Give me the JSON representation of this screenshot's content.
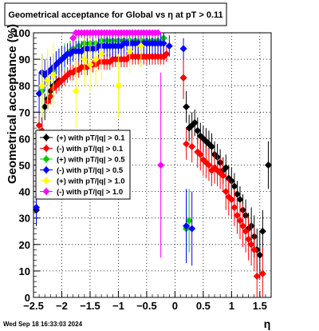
{
  "title_box": {
    "text": "Geometrical acceptance for Global vs    η  at pT > 0.11"
  },
  "timestamp": "Wed Sep 18 16:33:03 2024",
  "chart_data": {
    "type": "scatter",
    "title": "Geometrical acceptance for Global vs    η  at pT > 0.11",
    "xlabel": "η",
    "ylabel": "Geometrical acceptance (%)",
    "xlim": [
      -2.5,
      1.7
    ],
    "ylim": [
      0,
      100
    ],
    "grid": true,
    "legend_position": "center-left",
    "x_ticks": [
      -2.5,
      -2,
      -1.5,
      -1,
      -0.5,
      0,
      0.5,
      1,
      1.5
    ],
    "x_tick_labels": [
      "−2.5",
      "−2",
      "−1.5",
      "−1",
      "−0.5",
      "0",
      "0.5",
      "1",
      "1.5"
    ],
    "y_ticks": [
      0,
      10,
      20,
      30,
      40,
      50,
      60,
      70,
      80,
      90,
      100
    ],
    "y_tick_labels": [
      "0",
      "10",
      "20",
      "30",
      "40",
      "50",
      "60",
      "70",
      "80",
      "90",
      "100"
    ],
    "series": [
      {
        "name": "(+) with pT/|q| > 0.1",
        "color": "#000000",
        "points": [
          [
            -2.45,
            33
          ],
          [
            -2.35,
            62
          ],
          [
            -2.3,
            72
          ],
          [
            -2.25,
            75
          ],
          [
            -2.2,
            78
          ],
          [
            -2.15,
            80
          ],
          [
            -2.1,
            81
          ],
          [
            -2.05,
            82
          ],
          [
            0.15,
            83
          ],
          [
            0.2,
            72
          ],
          [
            0.25,
            64
          ],
          [
            0.3,
            65
          ],
          [
            0.35,
            66
          ],
          [
            0.4,
            63
          ],
          [
            0.45,
            61
          ],
          [
            0.5,
            60
          ],
          [
            0.55,
            59
          ],
          [
            0.6,
            58
          ],
          [
            0.65,
            57
          ],
          [
            0.7,
            54
          ],
          [
            0.75,
            53
          ],
          [
            0.8,
            51
          ],
          [
            0.85,
            48
          ],
          [
            0.9,
            49
          ],
          [
            0.95,
            45
          ],
          [
            1.0,
            44
          ],
          [
            1.05,
            42
          ],
          [
            1.1,
            39
          ],
          [
            1.15,
            37
          ],
          [
            1.2,
            33
          ],
          [
            1.25,
            31
          ],
          [
            1.3,
            26
          ],
          [
            1.35,
            27
          ],
          [
            1.4,
            23
          ],
          [
            1.45,
            18
          ],
          [
            1.5,
            16
          ],
          [
            1.55,
            25
          ],
          [
            1.65,
            50
          ]
        ],
        "err": [
          6,
          8,
          5,
          4,
          3,
          3,
          3,
          3,
          8,
          6,
          5,
          5,
          5,
          5,
          5,
          5,
          5,
          5,
          5,
          5,
          5,
          5,
          5,
          5,
          5,
          5,
          5,
          5,
          5,
          6,
          6,
          6,
          7,
          8,
          8,
          9,
          8,
          9
        ]
      },
      {
        "name": "(-) with pT/|q| > 0.1",
        "color": "#ff0000",
        "points": [
          [
            -2.4,
            65
          ],
          [
            -2.35,
            63
          ],
          [
            -2.25,
            74
          ],
          [
            -2.2,
            76
          ],
          [
            -2.15,
            79
          ],
          [
            -2.1,
            80
          ],
          [
            -2.05,
            81
          ],
          [
            -2.0,
            82
          ],
          [
            -1.95,
            83
          ],
          [
            -1.9,
            84
          ],
          [
            -1.85,
            85
          ],
          [
            -1.8,
            85
          ],
          [
            -1.75,
            86
          ],
          [
            -1.7,
            86
          ],
          [
            -1.65,
            87
          ],
          [
            -1.6,
            87
          ],
          [
            -1.55,
            87
          ],
          [
            -1.5,
            88
          ],
          [
            -1.45,
            88
          ],
          [
            -1.4,
            88
          ],
          [
            -1.35,
            89
          ],
          [
            -1.3,
            89
          ],
          [
            -1.25,
            89
          ],
          [
            -1.2,
            89
          ],
          [
            -1.15,
            89
          ],
          [
            -1.1,
            90
          ],
          [
            -1.05,
            90
          ],
          [
            -1.0,
            90
          ],
          [
            -0.95,
            90
          ],
          [
            -0.9,
            90
          ],
          [
            -0.85,
            90
          ],
          [
            -0.8,
            91
          ],
          [
            -0.75,
            91
          ],
          [
            -0.7,
            91
          ],
          [
            -0.65,
            91
          ],
          [
            -0.6,
            91
          ],
          [
            -0.55,
            91
          ],
          [
            -0.5,
            91
          ],
          [
            -0.45,
            91
          ],
          [
            -0.4,
            91
          ],
          [
            -0.35,
            91
          ],
          [
            -0.3,
            91
          ],
          [
            -0.25,
            91
          ],
          [
            -0.2,
            91
          ],
          [
            -0.15,
            92
          ],
          [
            0.15,
            83
          ],
          [
            0.2,
            58
          ],
          [
            0.3,
            57
          ],
          [
            0.4,
            55
          ],
          [
            0.45,
            54
          ],
          [
            0.5,
            52
          ],
          [
            0.55,
            51
          ],
          [
            0.6,
            50
          ],
          [
            0.65,
            48
          ],
          [
            0.7,
            49
          ],
          [
            0.75,
            48
          ],
          [
            0.8,
            47
          ],
          [
            0.85,
            46
          ],
          [
            0.9,
            40
          ],
          [
            0.95,
            38
          ],
          [
            1.0,
            37
          ],
          [
            1.05,
            34
          ],
          [
            1.1,
            31
          ],
          [
            1.15,
            29
          ],
          [
            1.2,
            27
          ],
          [
            1.25,
            25
          ],
          [
            1.3,
            22
          ],
          [
            1.35,
            20
          ],
          [
            1.4,
            18
          ],
          [
            1.45,
            8
          ],
          [
            1.55,
            9
          ]
        ],
        "err": [
          4,
          4,
          3,
          3,
          3,
          3,
          3,
          3,
          3,
          3,
          3,
          3,
          3,
          3,
          3,
          3,
          3,
          3,
          3,
          3,
          3,
          3,
          3,
          3,
          3,
          3,
          3,
          3,
          3,
          3,
          3,
          3,
          3,
          3,
          3,
          3,
          3,
          3,
          3,
          3,
          3,
          3,
          3,
          3,
          3,
          8,
          6,
          6,
          6,
          6,
          6,
          6,
          6,
          6,
          6,
          6,
          6,
          6,
          7,
          7,
          7,
          7,
          7,
          7,
          8,
          8,
          8,
          8,
          8,
          10,
          10
        ]
      },
      {
        "name": "(+) with pT/|q| > 0.5",
        "color": "#00cc00",
        "points": [
          [
            -2.35,
            78
          ],
          [
            -2.25,
            82
          ],
          [
            -2.15,
            86
          ],
          [
            -2.1,
            88
          ],
          [
            -2.05,
            89
          ],
          [
            -2.0,
            90
          ],
          [
            -1.95,
            91
          ],
          [
            -1.9,
            92
          ],
          [
            -1.85,
            93
          ],
          [
            -1.8,
            94
          ],
          [
            -1.7,
            95
          ],
          [
            -1.6,
            96
          ],
          [
            -1.5,
            96
          ],
          [
            -1.4,
            96
          ],
          [
            -1.3,
            97
          ],
          [
            -1.2,
            97
          ],
          [
            -1.1,
            97
          ],
          [
            -1.0,
            97
          ],
          [
            -0.9,
            97
          ],
          [
            -0.8,
            97
          ],
          [
            -0.7,
            97
          ],
          [
            -0.6,
            97
          ],
          [
            -0.5,
            97
          ],
          [
            -0.4,
            97
          ],
          [
            -0.3,
            97
          ],
          [
            -0.2,
            98
          ],
          [
            0.2,
            26
          ],
          [
            0.25,
            29
          ]
        ],
        "err": [
          8,
          7,
          6,
          5,
          5,
          5,
          5,
          4,
          4,
          4,
          4,
          4,
          4,
          4,
          4,
          4,
          4,
          4,
          4,
          4,
          4,
          4,
          4,
          4,
          4,
          4,
          12,
          12
        ]
      },
      {
        "name": "(-) with pT/|q| > 0.5",
        "color": "#0000ff",
        "points": [
          [
            -2.45,
            34
          ],
          [
            -2.4,
            77
          ],
          [
            -2.35,
            85
          ],
          [
            -2.3,
            84
          ],
          [
            -2.25,
            85
          ],
          [
            -2.2,
            86
          ],
          [
            -2.15,
            87
          ],
          [
            -2.1,
            88
          ],
          [
            -2.05,
            89
          ],
          [
            -2.0,
            90
          ],
          [
            -1.95,
            91
          ],
          [
            -1.9,
            92
          ],
          [
            -1.85,
            92
          ],
          [
            -1.8,
            93
          ],
          [
            -1.75,
            93
          ],
          [
            -1.7,
            93
          ],
          [
            -1.65,
            93
          ],
          [
            -1.6,
            94
          ],
          [
            -1.55,
            94
          ],
          [
            -1.5,
            94
          ],
          [
            -1.45,
            94
          ],
          [
            -1.4,
            94
          ],
          [
            -1.35,
            95
          ],
          [
            -1.3,
            95
          ],
          [
            -1.25,
            95
          ],
          [
            -1.2,
            95
          ],
          [
            -1.15,
            95
          ],
          [
            -1.1,
            95
          ],
          [
            -1.05,
            95
          ],
          [
            -1.0,
            95
          ],
          [
            -0.95,
            95
          ],
          [
            -0.9,
            96
          ],
          [
            -0.85,
            96
          ],
          [
            -0.8,
            96
          ],
          [
            -0.75,
            96
          ],
          [
            -0.7,
            96
          ],
          [
            -0.65,
            96
          ],
          [
            -0.6,
            96
          ],
          [
            -0.55,
            96
          ],
          [
            -0.5,
            96
          ],
          [
            -0.45,
            96
          ],
          [
            -0.4,
            96
          ],
          [
            -0.35,
            96
          ],
          [
            -0.3,
            96
          ],
          [
            -0.25,
            96
          ],
          [
            -0.2,
            96
          ],
          [
            -0.1,
            95
          ],
          [
            0.15,
            94
          ],
          [
            0.2,
            27
          ],
          [
            0.3,
            26
          ]
        ],
        "err": [
          6,
          8,
          7,
          6,
          5,
          5,
          5,
          5,
          5,
          5,
          4,
          4,
          4,
          4,
          4,
          4,
          4,
          4,
          4,
          4,
          4,
          4,
          4,
          4,
          4,
          4,
          4,
          4,
          4,
          4,
          4,
          4,
          4,
          4,
          4,
          4,
          4,
          4,
          4,
          4,
          4,
          4,
          4,
          4,
          4,
          4,
          4,
          4,
          14,
          14
        ]
      },
      {
        "name": "(+) with pT/|q| > 1.0",
        "color": "#ffff00",
        "points": [
          [
            -2.35,
            80
          ],
          [
            -2.25,
            82
          ],
          [
            -2.15,
            84
          ],
          [
            -1.75,
            78
          ],
          [
            -1.6,
            90
          ],
          [
            -1.5,
            88
          ],
          [
            -1.4,
            90
          ],
          [
            -1.3,
            92
          ],
          [
            -1.0,
            80
          ],
          [
            -0.8,
            93
          ],
          [
            -0.6,
            95
          ]
        ],
        "err": [
          12,
          12,
          12,
          14,
          10,
          10,
          10,
          10,
          12,
          8,
          8
        ]
      },
      {
        "name": "(-) with pT/|q| > 1.0",
        "color": "#ff00ff",
        "points": [
          [
            -1.8,
            98
          ],
          [
            -1.75,
            100
          ],
          [
            -1.7,
            100
          ],
          [
            -1.65,
            100
          ],
          [
            -1.6,
            100
          ],
          [
            -1.55,
            100
          ],
          [
            -1.5,
            100
          ],
          [
            -1.45,
            100
          ],
          [
            -1.4,
            100
          ],
          [
            -1.35,
            100
          ],
          [
            -1.3,
            100
          ],
          [
            -1.25,
            100
          ],
          [
            -1.2,
            100
          ],
          [
            -1.15,
            100
          ],
          [
            -1.1,
            100
          ],
          [
            -1.05,
            100
          ],
          [
            -1.0,
            100
          ],
          [
            -0.95,
            100
          ],
          [
            -0.9,
            100
          ],
          [
            -0.85,
            100
          ],
          [
            -0.8,
            100
          ],
          [
            -0.75,
            100
          ],
          [
            -0.7,
            100
          ],
          [
            -0.65,
            100
          ],
          [
            -0.6,
            100
          ],
          [
            -0.55,
            100
          ],
          [
            -0.5,
            100
          ],
          [
            -0.45,
            100
          ],
          [
            -0.4,
            100
          ],
          [
            -0.35,
            100
          ],
          [
            -0.3,
            100
          ],
          [
            -0.25,
            50
          ]
        ],
        "err": [
          4,
          2,
          2,
          2,
          2,
          2,
          2,
          2,
          2,
          2,
          2,
          2,
          2,
          2,
          2,
          2,
          2,
          2,
          2,
          2,
          2,
          2,
          2,
          2,
          2,
          2,
          2,
          2,
          2,
          2,
          2,
          35
        ]
      }
    ]
  }
}
